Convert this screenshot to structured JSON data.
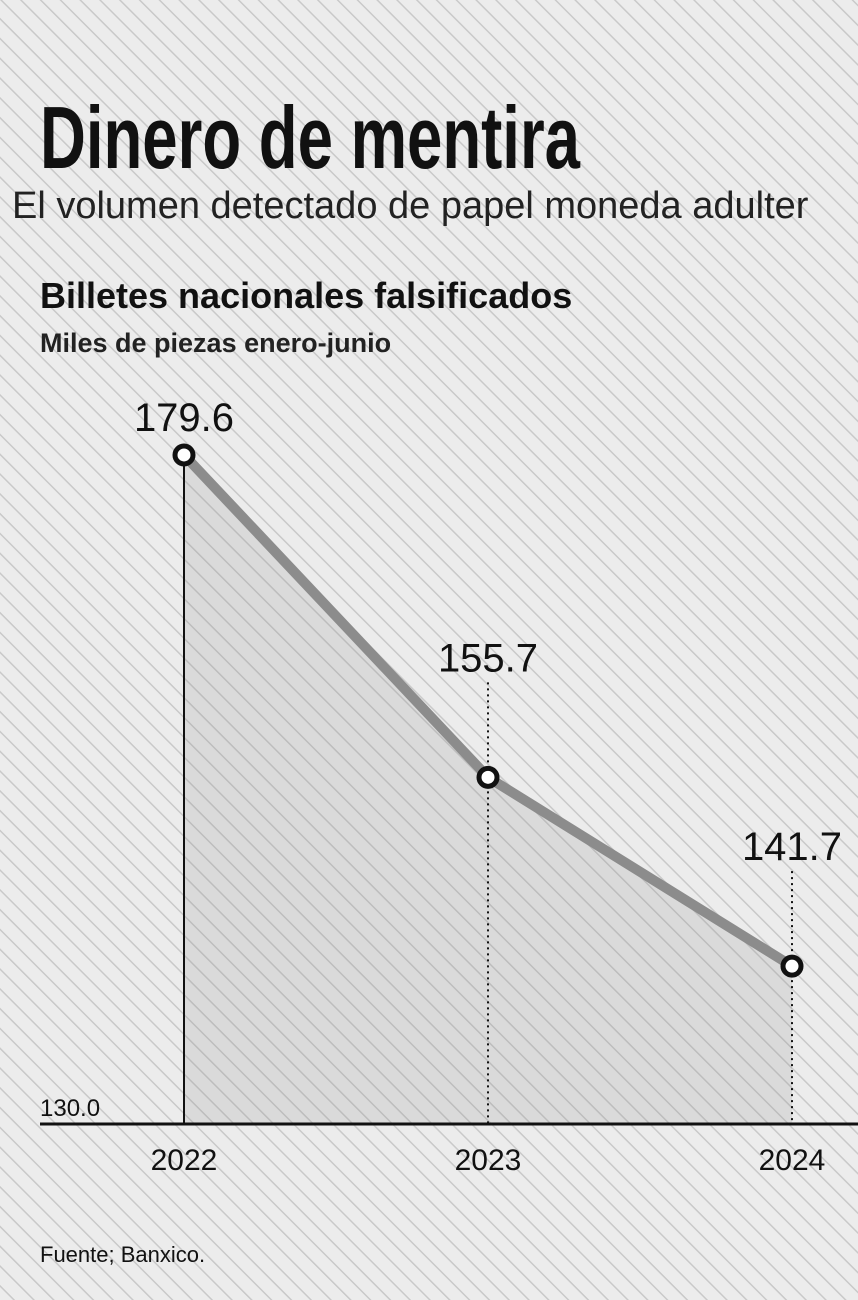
{
  "chart_data": {
    "type": "line",
    "title": "Dinero de mentira",
    "subtitle": "El volumen detectado de papel moneda adulter",
    "chart_title": "Billetes nacionales falsificados",
    "y_label": "Miles de piezas enero-junio",
    "categories": [
      "2022",
      "2023",
      "2024"
    ],
    "values": [
      179.6,
      155.7,
      141.7
    ],
    "color": "#8c8c8c",
    "ylim": [
      130,
      184
    ],
    "yticks": [
      {
        "value": 130,
        "label": "130.0"
      }
    ],
    "source": "Fuente; Banxico."
  }
}
